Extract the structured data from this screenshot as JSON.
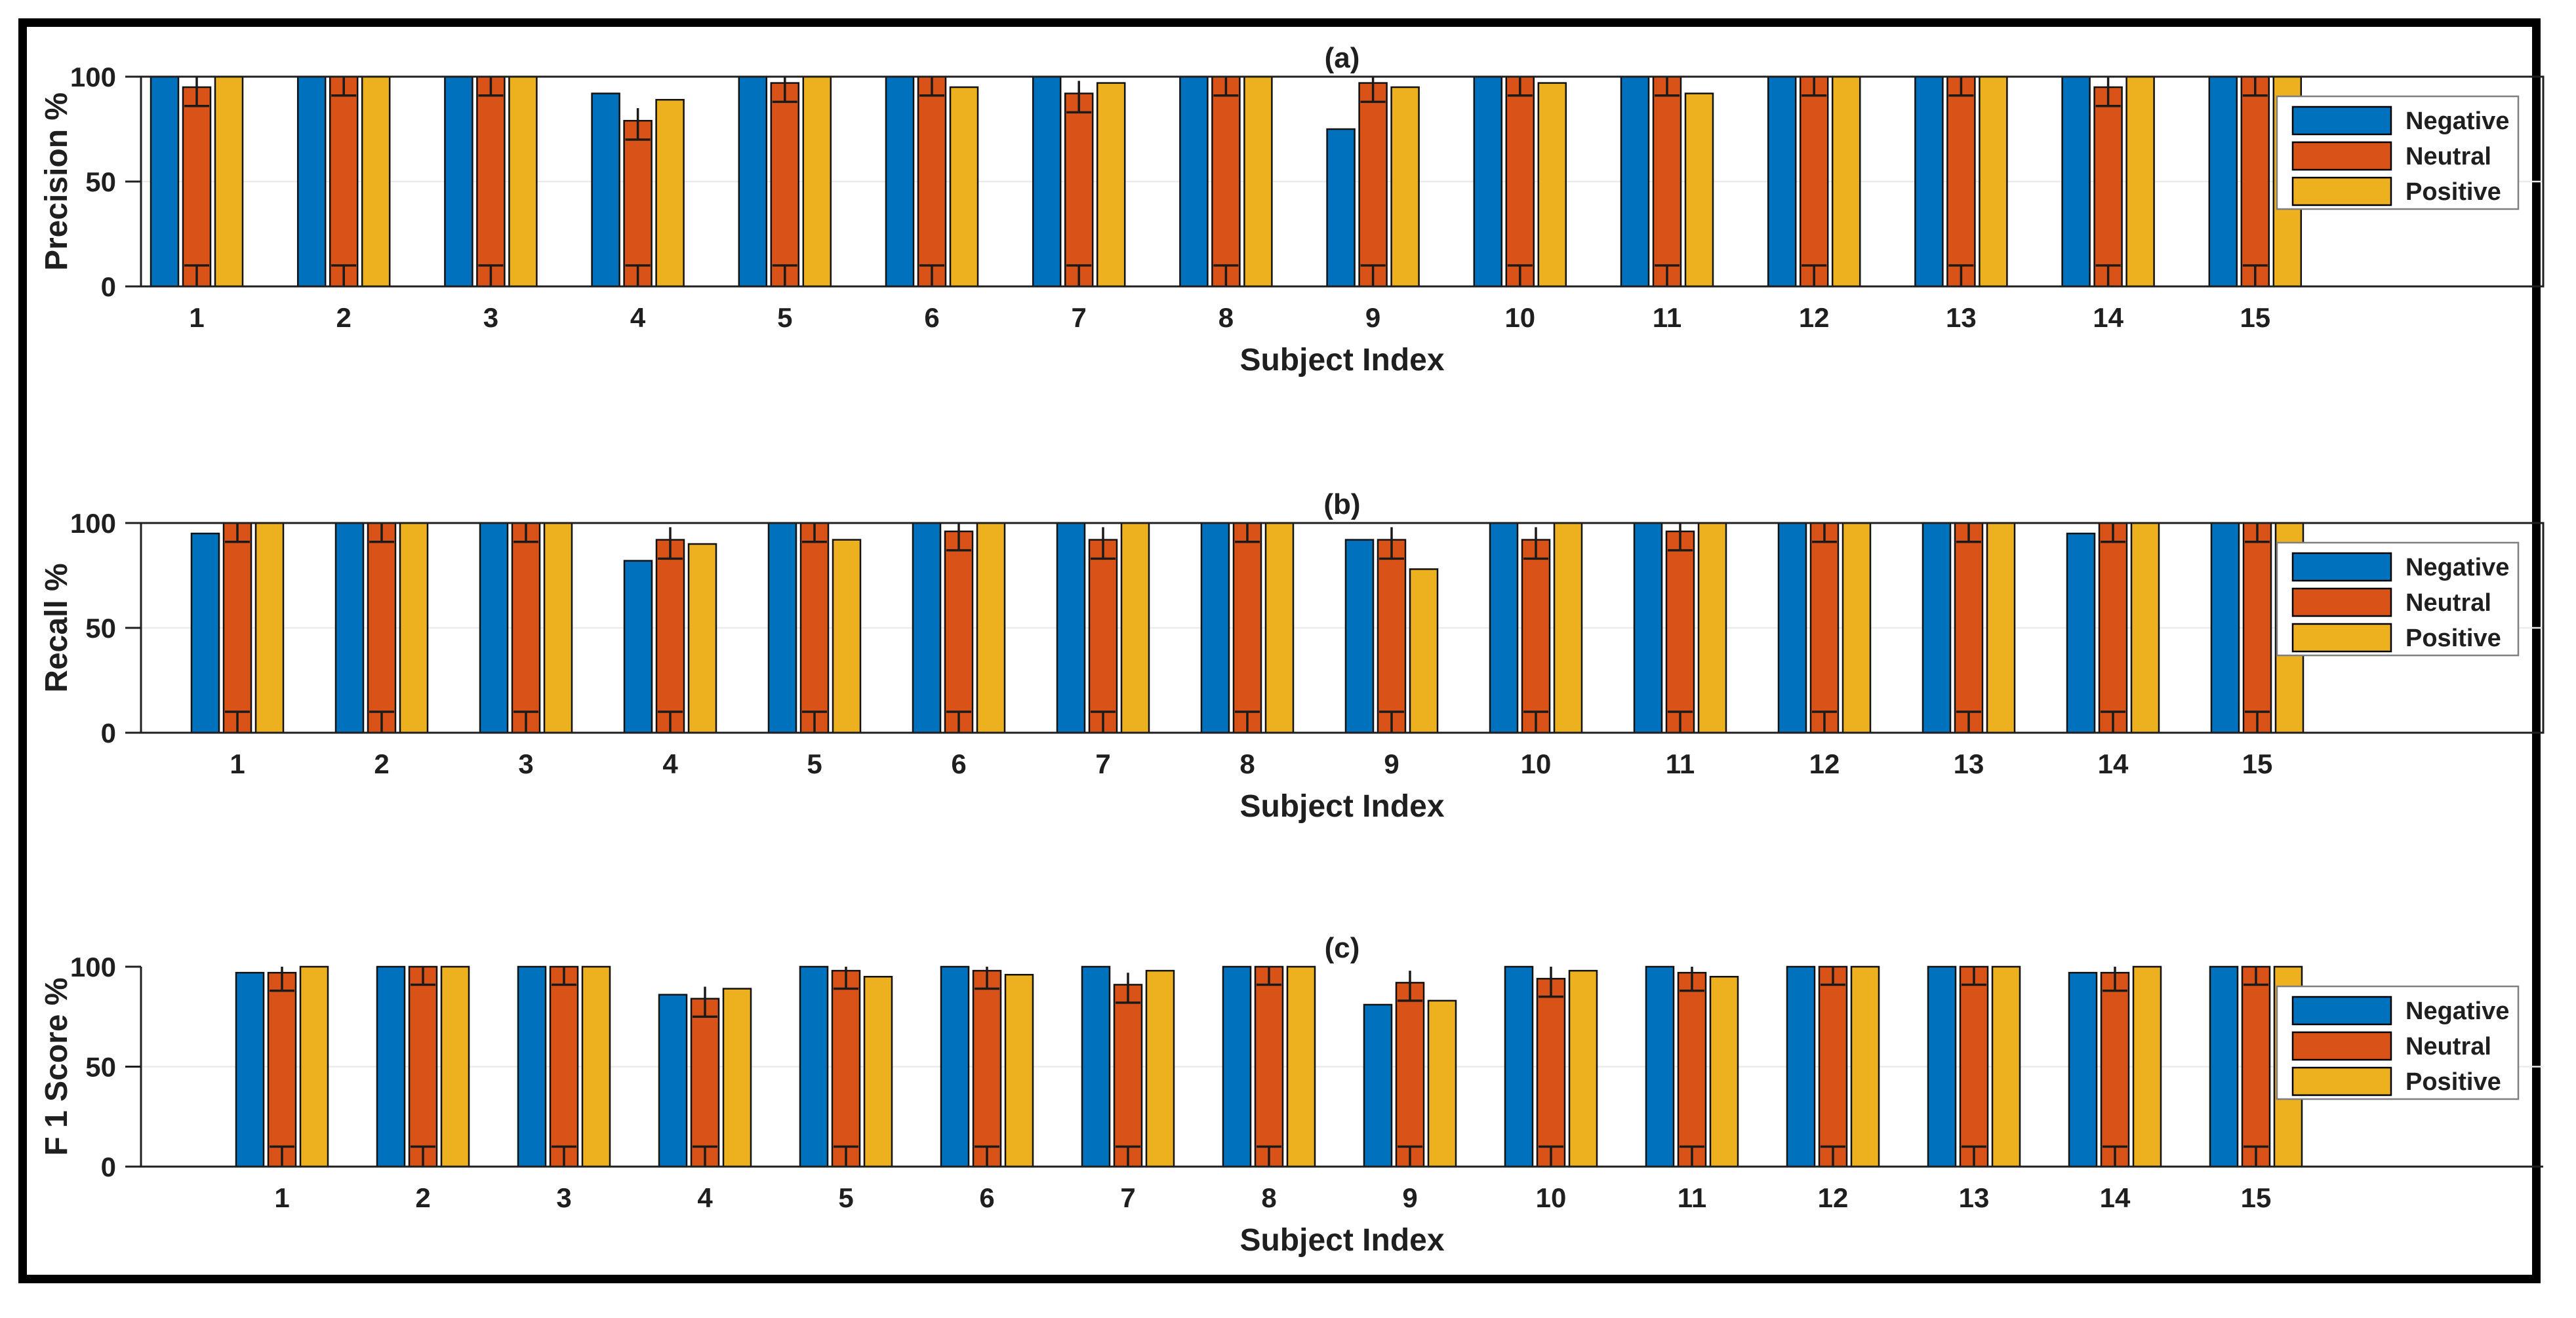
{
  "figure": {
    "background": "#ffffff",
    "border_color": "#000000",
    "axis_color": "#1f1f1f",
    "grid_color": "#ebebeb",
    "bar_edge_color": "#111111",
    "error_bar_color": "#1a1a1a",
    "legend_edge_color": "#7f7f7f",
    "series_colors": {
      "Negative": "#0072BD",
      "Neutral": "#D95319",
      "Positive": "#EDB120"
    }
  },
  "chart_data": [
    {
      "type": "bar",
      "panel_label": "(a)",
      "ylabel": "Precision %",
      "xlabel": "Subject Index",
      "categories": [
        "1",
        "2",
        "3",
        "4",
        "5",
        "6",
        "7",
        "8",
        "9",
        "10",
        "11",
        "12",
        "13",
        "14",
        "15"
      ],
      "yticks": [
        0,
        50,
        100
      ],
      "ylim": [
        0,
        100
      ],
      "grid_y": [
        50
      ],
      "box": true,
      "legend": {
        "position": "right",
        "entries": [
          "Negative",
          "Neutral",
          "Positive"
        ]
      },
      "series": [
        {
          "name": "Negative",
          "values": [
            100,
            100,
            100,
            92,
            100,
            100,
            100,
            100,
            75,
            100,
            100,
            100,
            100,
            100,
            100
          ]
        },
        {
          "name": "Neutral",
          "values": [
            95,
            100,
            100,
            79,
            97,
            100,
            92,
            100,
            97,
            100,
            100,
            100,
            100,
            95,
            100
          ],
          "error_bars": true
        },
        {
          "name": "Positive",
          "values": [
            100,
            100,
            100,
            89,
            100,
            95,
            97,
            100,
            95,
            97,
            92,
            100,
            100,
            100,
            100
          ]
        }
      ]
    },
    {
      "type": "bar",
      "panel_label": "(b)",
      "ylabel": "Recall %",
      "xlabel": "Subject Index",
      "categories": [
        "1",
        "2",
        "3",
        "4",
        "5",
        "6",
        "7",
        "8",
        "9",
        "10",
        "11",
        "12",
        "13",
        "14",
        "15"
      ],
      "yticks": [
        0,
        50,
        100
      ],
      "ylim": [
        0,
        100
      ],
      "grid_y": [
        50
      ],
      "box": true,
      "legend": {
        "position": "right",
        "entries": [
          "Negative",
          "Neutral",
          "Positive"
        ]
      },
      "series": [
        {
          "name": "Negative",
          "values": [
            95,
            100,
            100,
            82,
            100,
            100,
            100,
            100,
            92,
            100,
            100,
            100,
            100,
            95,
            100
          ]
        },
        {
          "name": "Neutral",
          "values": [
            100,
            100,
            100,
            92,
            100,
            96,
            92,
            100,
            92,
            92,
            96,
            100,
            100,
            100,
            100
          ],
          "error_bars": true
        },
        {
          "name": "Positive",
          "values": [
            100,
            100,
            100,
            90,
            92,
            100,
            100,
            100,
            78,
            100,
            100,
            100,
            100,
            100,
            100
          ]
        }
      ]
    },
    {
      "type": "bar",
      "panel_label": "(c)",
      "ylabel": "F 1 Score %",
      "xlabel": "Subject Index",
      "categories": [
        "1",
        "2",
        "3",
        "4",
        "5",
        "6",
        "7",
        "8",
        "9",
        "10",
        "11",
        "12",
        "13",
        "14",
        "15"
      ],
      "yticks": [
        0,
        50,
        100
      ],
      "ylim": [
        0,
        100
      ],
      "grid_y": [
        50
      ],
      "box": false,
      "legend": {
        "position": "right",
        "entries": [
          "Negative",
          "Neutral",
          "Positive"
        ]
      },
      "series": [
        {
          "name": "Negative",
          "values": [
            97,
            100,
            100,
            86,
            100,
            100,
            100,
            100,
            81,
            100,
            100,
            100,
            100,
            97,
            100
          ]
        },
        {
          "name": "Neutral",
          "values": [
            97,
            100,
            100,
            84,
            98,
            98,
            91,
            100,
            92,
            94,
            97,
            100,
            100,
            97,
            100
          ],
          "error_bars": true
        },
        {
          "name": "Positive",
          "values": [
            100,
            100,
            100,
            89,
            95,
            96,
            98,
            100,
            83,
            98,
            95,
            100,
            100,
            100,
            100
          ]
        }
      ]
    }
  ]
}
